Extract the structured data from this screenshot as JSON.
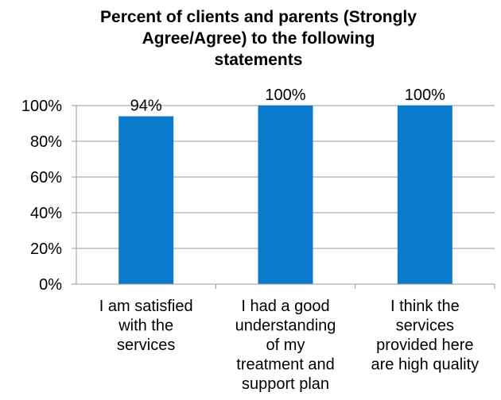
{
  "chart_data": {
    "type": "bar",
    "title": "Percent of clients and parents (Strongly Agree/Agree) to the following statements",
    "title_lines": [
      "Percent of clients and parents (Strongly",
      "Agree/Agree) to the following",
      "statements"
    ],
    "categories": [
      "I am satisfied with the services",
      "I had a good understanding of my treatment and support plan",
      "I think the services provided here are high quality"
    ],
    "category_lines": [
      [
        "I am satisfied",
        "with the",
        "services"
      ],
      [
        "I had a good",
        "understanding",
        "of my",
        "treatment and",
        "support plan"
      ],
      [
        "I think the",
        "services",
        "provided here",
        "are high quality"
      ]
    ],
    "values": [
      94,
      100,
      100
    ],
    "data_labels": [
      "94%",
      "100%",
      "100%"
    ],
    "y_ticks": [
      "0%",
      "20%",
      "40%",
      "60%",
      "80%",
      "100%"
    ],
    "ylim": [
      0,
      100
    ],
    "xlabel": "",
    "ylabel": "",
    "bar_color": "#0A7ACC",
    "grid": true,
    "legend": "none"
  }
}
